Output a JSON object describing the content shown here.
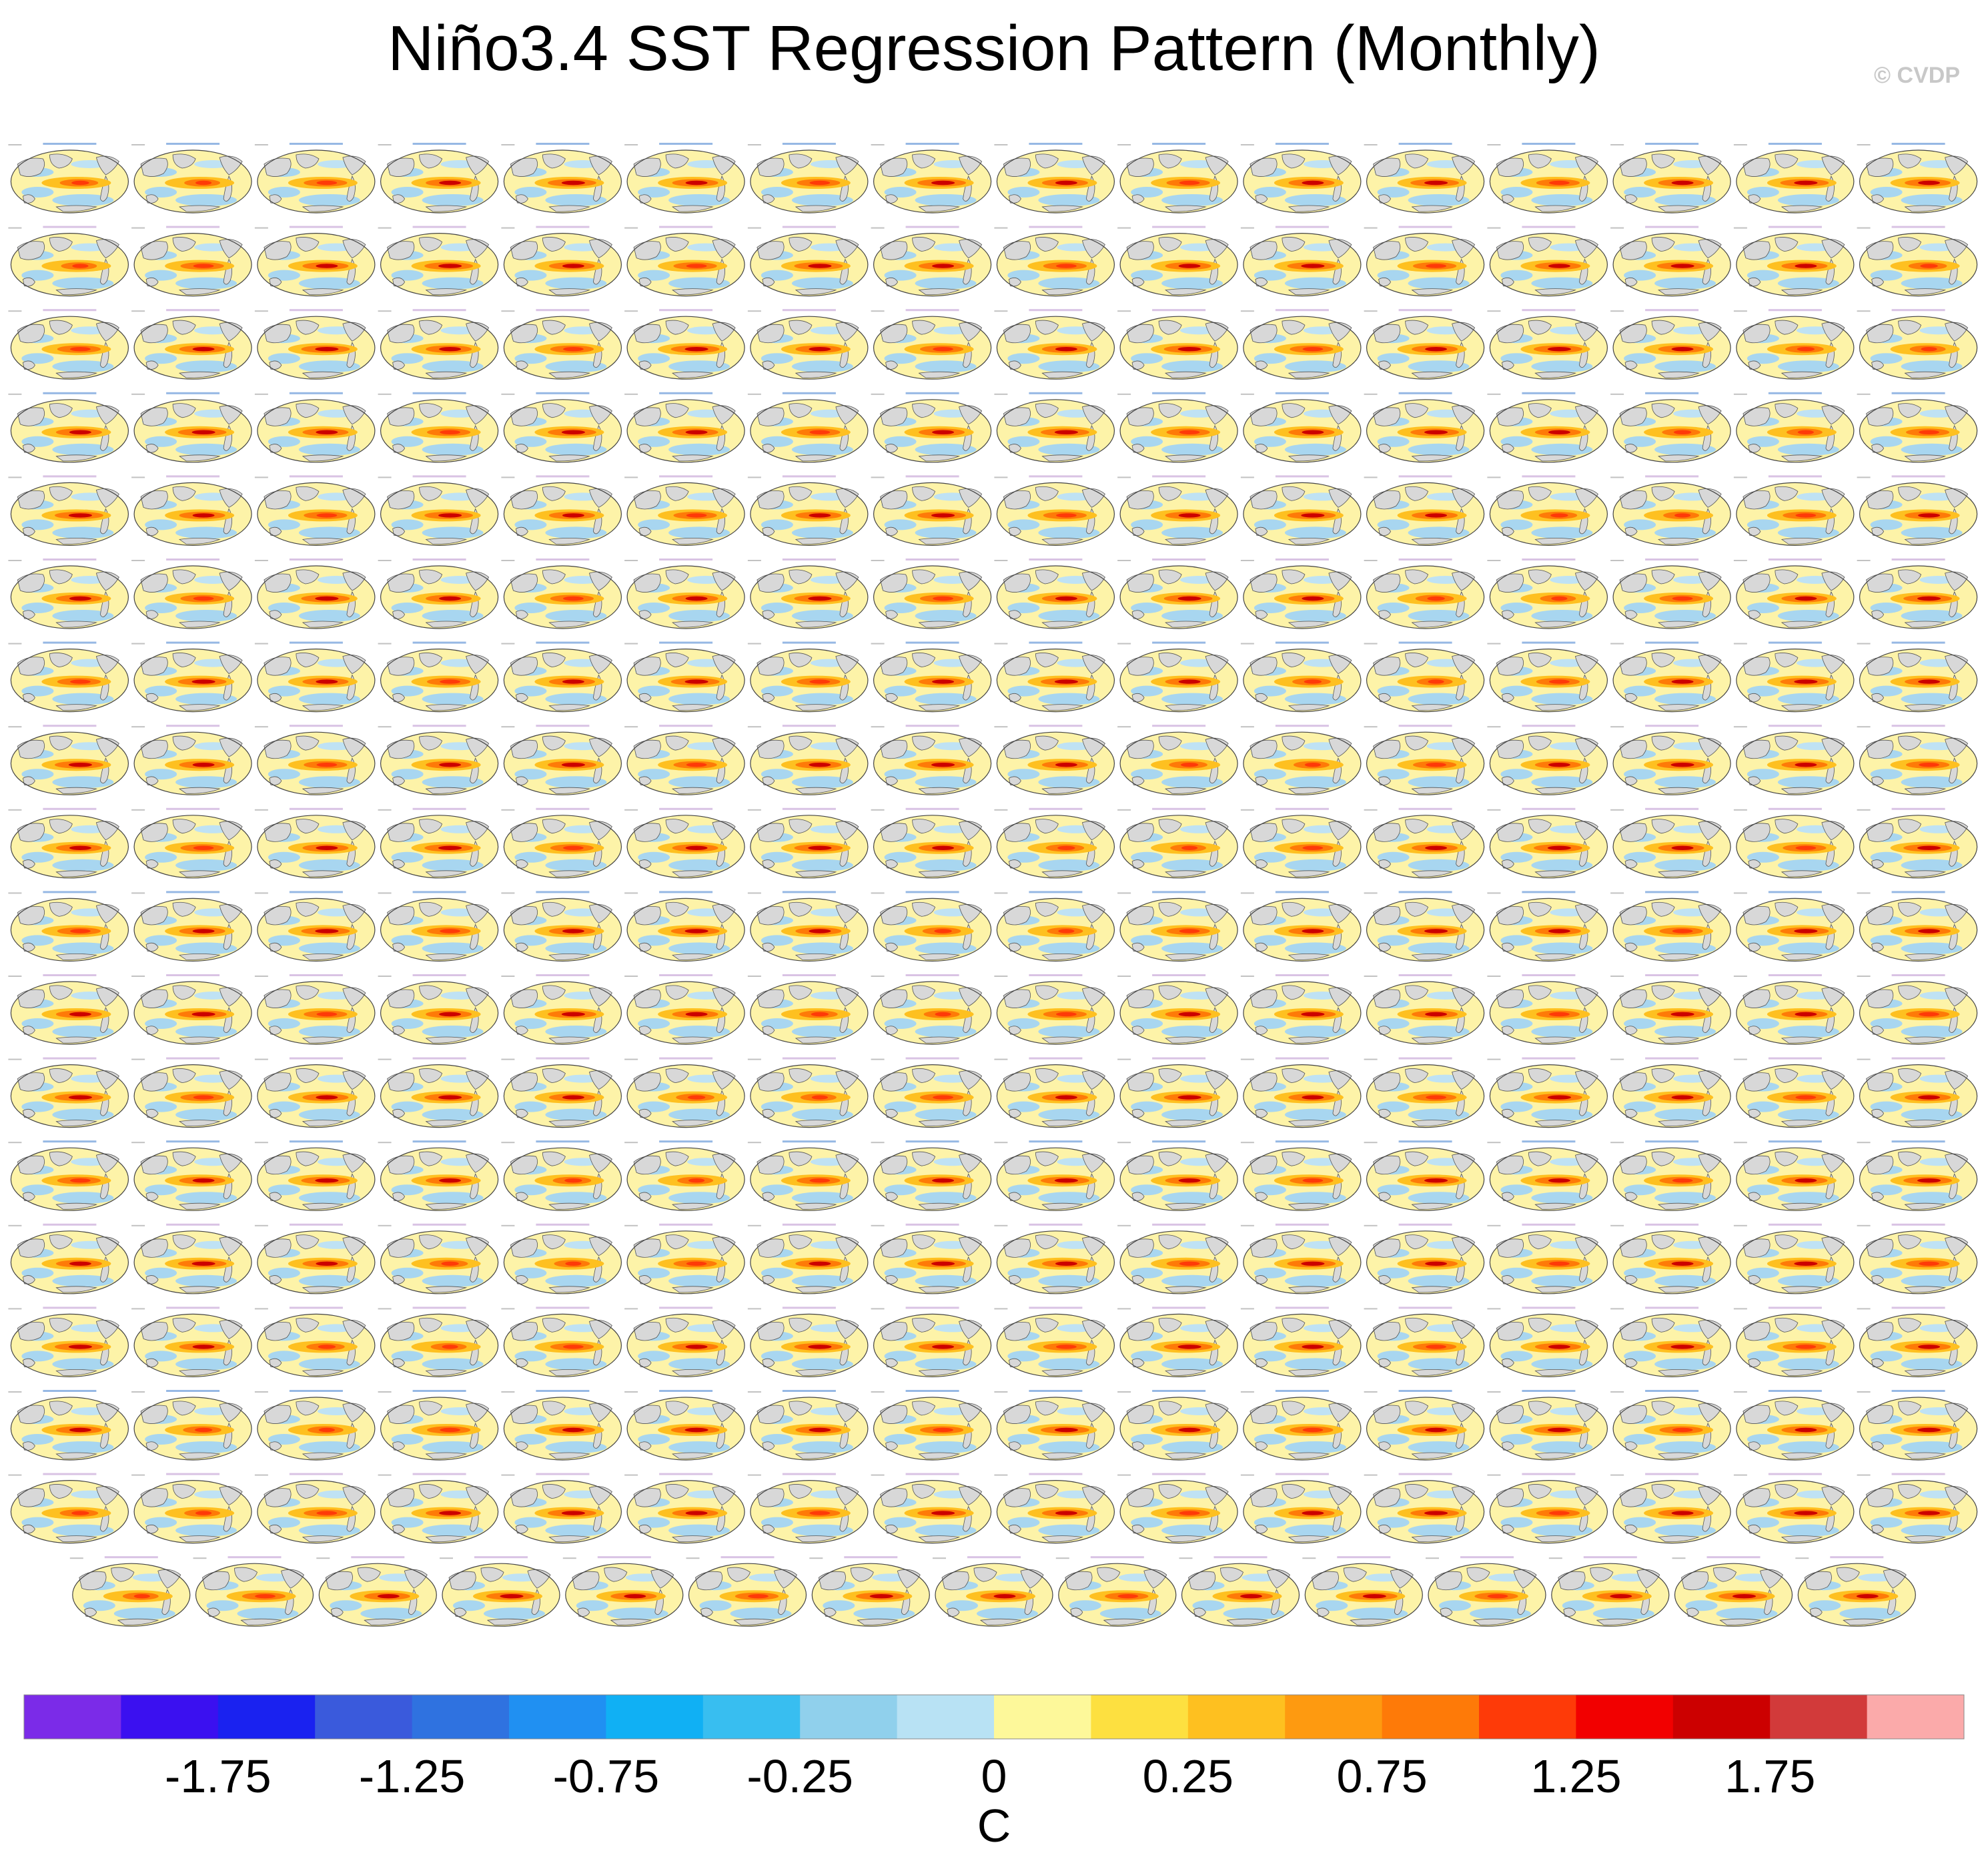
{
  "title": "Niño3.4 SST Regression Pattern (Monthly)",
  "watermark": "© CVDP",
  "chart_data": {
    "type": "heatmap",
    "title": "Niño3.4 SST Regression Pattern (Monthly)",
    "panel_layout": {
      "rows": 18,
      "full_row_columns": 16,
      "last_row_columns": 15,
      "panel_count": 287
    },
    "colorbar": {
      "unit": "C",
      "tick_labels": [
        "-1.75",
        "-1.25",
        "-0.75",
        "-0.25",
        "0",
        "0.25",
        "0.75",
        "1.25",
        "1.75"
      ],
      "colors": [
        "#7b2be8",
        "#3b10f0",
        "#1a22f0",
        "#3a5adc",
        "#2f72e0",
        "#2090f2",
        "#10b0f4",
        "#38bef0",
        "#90d0ec",
        "#b8e2f4",
        "#fdf89a",
        "#fde040",
        "#fec020",
        "#fe9a10",
        "#fe7a08",
        "#fe3a08",
        "#f20000",
        "#cc0000",
        "#d23a3a",
        "#fbaaaa"
      ],
      "boundaries": [
        -2,
        -1.75,
        -1.5,
        -1.25,
        -1,
        -0.75,
        -0.5,
        -0.25,
        -0.1,
        0,
        0.1,
        0.25,
        0.5,
        0.75,
        1,
        1.25,
        1.5,
        1.75,
        2
      ]
    },
    "panel_intensity": [
      0.6,
      0.55,
      0.7,
      0.75,
      0.8,
      0.75,
      0.7,
      0.8,
      0.75,
      0.7,
      0.75,
      0.8,
      0.7,
      0.75,
      0.8,
      0.75
    ]
  }
}
